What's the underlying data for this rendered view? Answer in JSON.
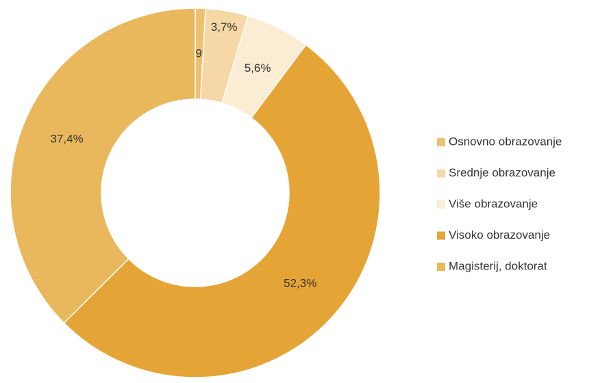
{
  "chart_data": {
    "type": "donut",
    "categories": [
      "Osnovno obrazovanje",
      "Srednje obrazovanje",
      "Više obrazovanje",
      "Visoko obrazovanje",
      "Magisterij, doktorat"
    ],
    "values": [
      0.9,
      3.7,
      5.6,
      52.3,
      37.4
    ],
    "value_labels": [
      "0,9%",
      "3,7%",
      "5,6%",
      "52,3%",
      "37,4%"
    ],
    "colors": [
      "#eec170",
      "#f5d8a6",
      "#fbecd4",
      "#e5a536",
      "#e9b75c"
    ],
    "legend": "right"
  }
}
